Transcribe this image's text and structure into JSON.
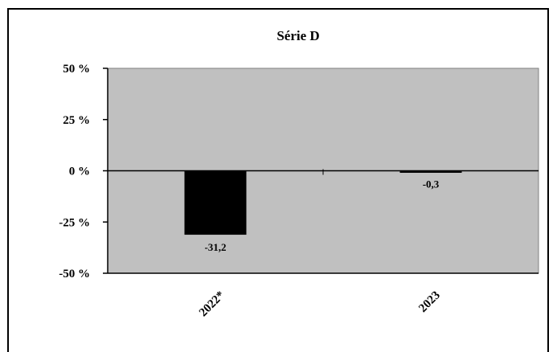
{
  "chart_data": {
    "type": "bar",
    "title": "Série D",
    "categories": [
      "2022*",
      "2023"
    ],
    "series": [
      {
        "values": [
          -31.2,
          -0.3
        ],
        "data_labels": [
          "-31,2",
          "-0,3"
        ],
        "color": "#000000"
      }
    ],
    "ylim": [
      -50,
      50
    ],
    "yticks": [
      {
        "value": 50,
        "label": "50 %"
      },
      {
        "value": 25,
        "label": "25 %"
      },
      {
        "value": 0,
        "label": "0 %"
      },
      {
        "value": -25,
        "label": "-25 %"
      },
      {
        "value": -50,
        "label": "-50 %"
      }
    ],
    "xlabel": "",
    "ylabel": "",
    "grid": false,
    "legend": "none",
    "plot_background": "#c0c0c0",
    "x_tick_rotation": "45-degree diagonal"
  }
}
